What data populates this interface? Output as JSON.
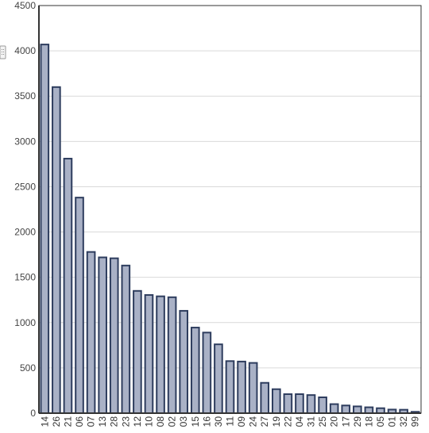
{
  "chart_data": {
    "type": "bar",
    "title": "",
    "xlabel": "",
    "ylabel": "",
    "ylim": [
      0,
      4500
    ],
    "yticks": [
      0,
      500,
      1000,
      1500,
      2000,
      2500,
      3000,
      3500,
      4000,
      4500
    ],
    "grid": true,
    "legend": "none",
    "categories": [
      "14",
      "26",
      "21",
      "06",
      "07",
      "13",
      "28",
      "23",
      "12",
      "10",
      "08",
      "02",
      "03",
      "15",
      "16",
      "30",
      "11",
      "09",
      "24",
      "27",
      "19",
      "22",
      "04",
      "31",
      "25",
      "20",
      "17",
      "29",
      "18",
      "05",
      "01",
      "32",
      "99"
    ],
    "values": [
      4070,
      3600,
      2810,
      2380,
      1780,
      1720,
      1710,
      1630,
      1350,
      1305,
      1290,
      1280,
      1130,
      945,
      890,
      760,
      575,
      570,
      555,
      335,
      265,
      210,
      210,
      200,
      175,
      100,
      85,
      75,
      65,
      55,
      40,
      38,
      15
    ],
    "colors": {
      "bar_fill": "#a9b1c6",
      "bar_stroke": "#2e3d5e",
      "axis": "#333333",
      "grid": "#d9d9d9"
    }
  },
  "ui": {
    "resize_handle": "resize-handle-icon"
  }
}
